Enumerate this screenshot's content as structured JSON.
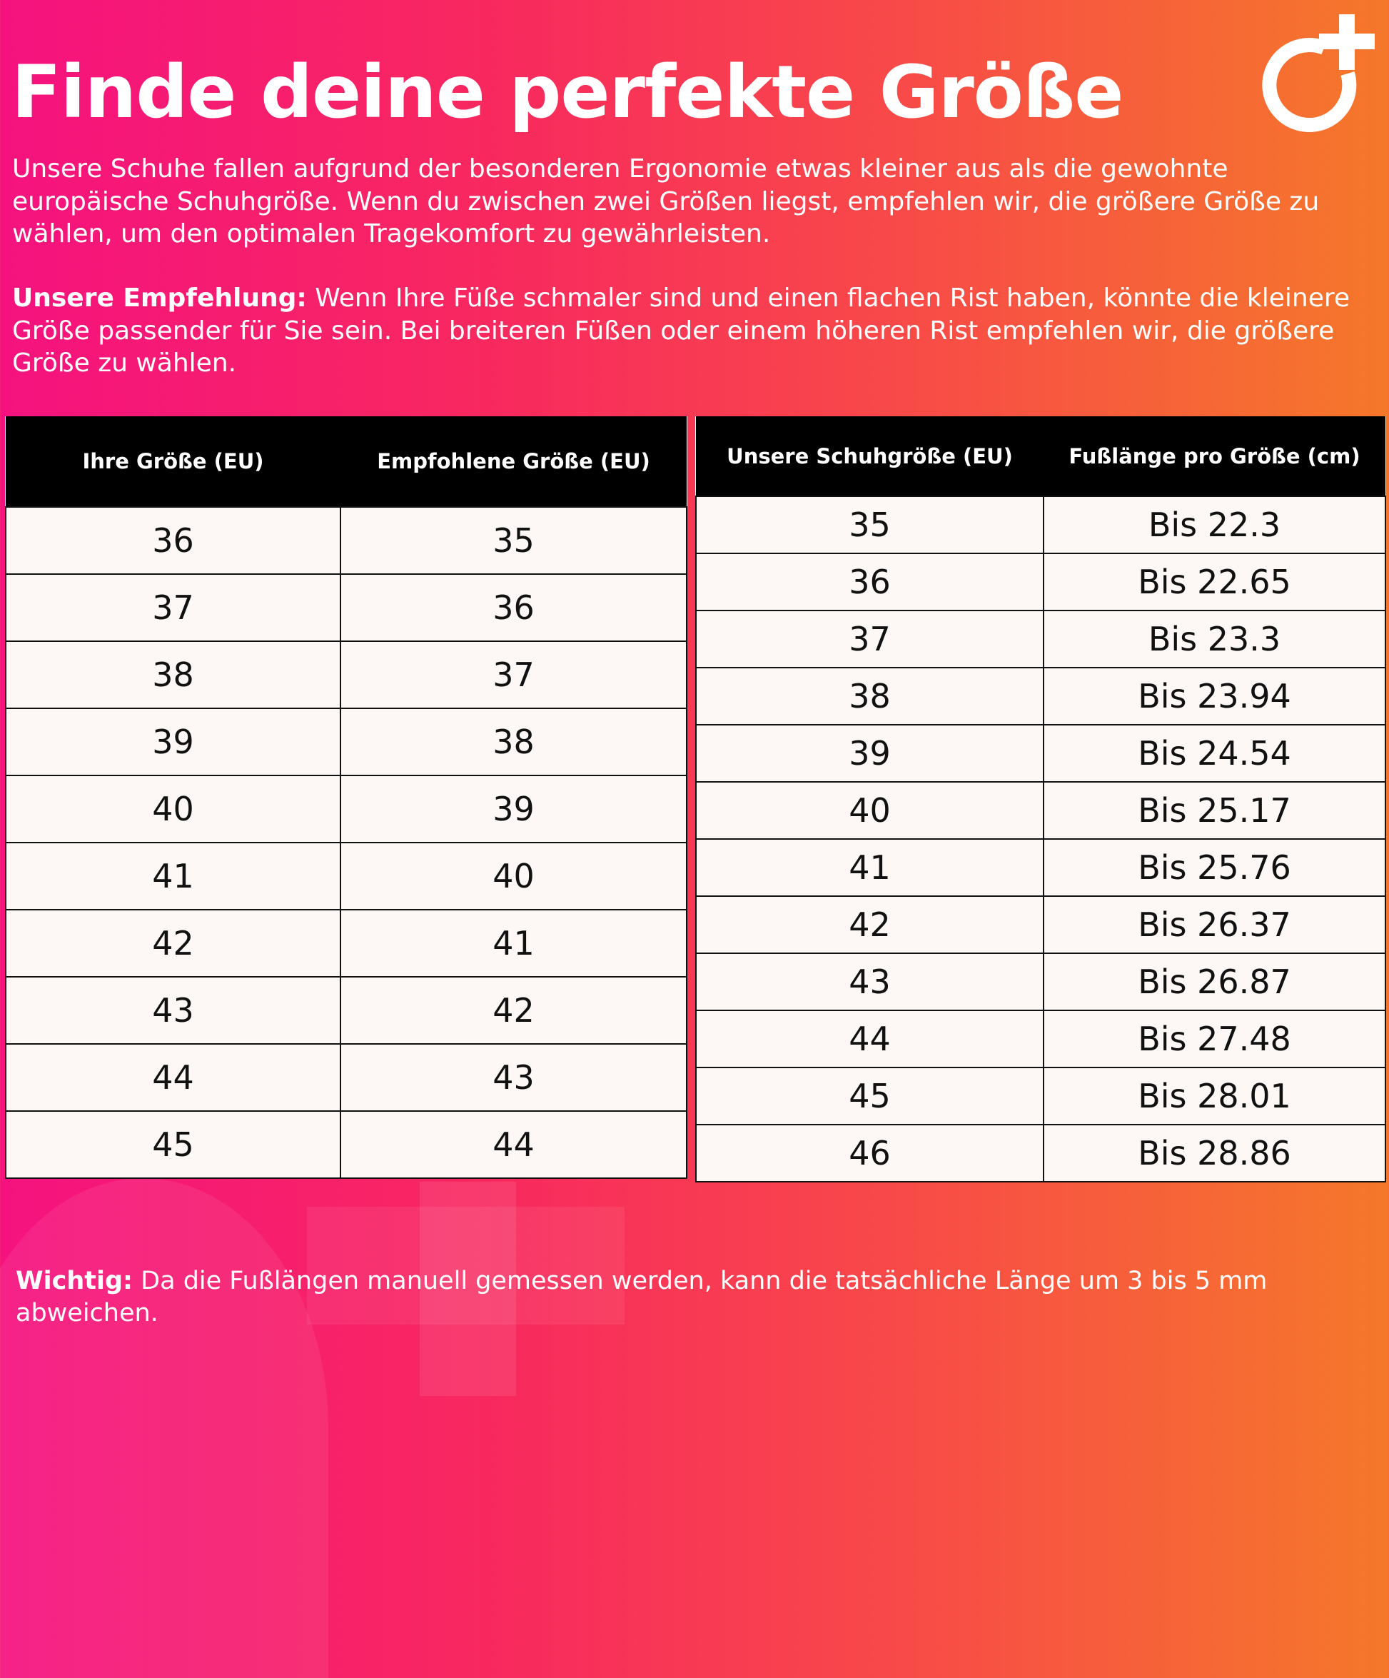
{
  "title": "Finde deine perfekte Größe",
  "intro": "Unsere Schuhe fallen aufgrund der besonderen Ergonomie etwas kleiner aus als die gewohnte europäische Schuhgröße. Wenn du zwischen zwei Größen liegst, empfehlen wir, die größere Größe zu wählen, um den optimalen Tragekomfort zu gewährleisten.",
  "recommendation": {
    "label": "Unsere Empfehlung:",
    "text": " Wenn Ihre Füße schmaler sind und einen flachen Rist haben, könnte die kleinere Größe passender für Sie sein. Bei breiteren Füßen oder einem höheren Rist empfehlen wir, die größere Größe zu wählen."
  },
  "size_table": {
    "headers": [
      "Ihre Größe (EU)",
      "Empfohlene Größe (EU)"
    ],
    "rows": [
      [
        "36",
        "35"
      ],
      [
        "37",
        "36"
      ],
      [
        "38",
        "37"
      ],
      [
        "39",
        "38"
      ],
      [
        "40",
        "39"
      ],
      [
        "41",
        "40"
      ],
      [
        "42",
        "41"
      ],
      [
        "43",
        "42"
      ],
      [
        "44",
        "43"
      ],
      [
        "45",
        "44"
      ]
    ]
  },
  "length_table": {
    "headers": [
      "Unsere Schuhgröße (EU)",
      "Fußlänge pro Größe (cm)"
    ],
    "rows": [
      [
        "35",
        "Bis 22.3"
      ],
      [
        "36",
        "Bis 22.65"
      ],
      [
        "37",
        "Bis 23.3"
      ],
      [
        "38",
        "Bis 23.94"
      ],
      [
        "39",
        "Bis 24.54"
      ],
      [
        "40",
        "Bis 25.17"
      ],
      [
        "41",
        "Bis 25.76"
      ],
      [
        "42",
        "Bis 26.37"
      ],
      [
        "43",
        "Bis 26.87"
      ],
      [
        "44",
        "Bis 27.48"
      ],
      [
        "45",
        "Bis 28.01"
      ],
      [
        "46",
        "Bis 28.86"
      ]
    ]
  },
  "note": {
    "label": "Wichtig:",
    "text": " Da die Fußlängen manuell gemessen werden, kann die tatsächliche Länge um 3 bis 5 mm abweichen."
  },
  "logo_icon": "circle-plus-logo",
  "colors": {
    "gradient_left": "#f5127f",
    "gradient_right": "#f5782a",
    "header_bg": "#000000",
    "cell_bg": "#fdf8f5"
  }
}
